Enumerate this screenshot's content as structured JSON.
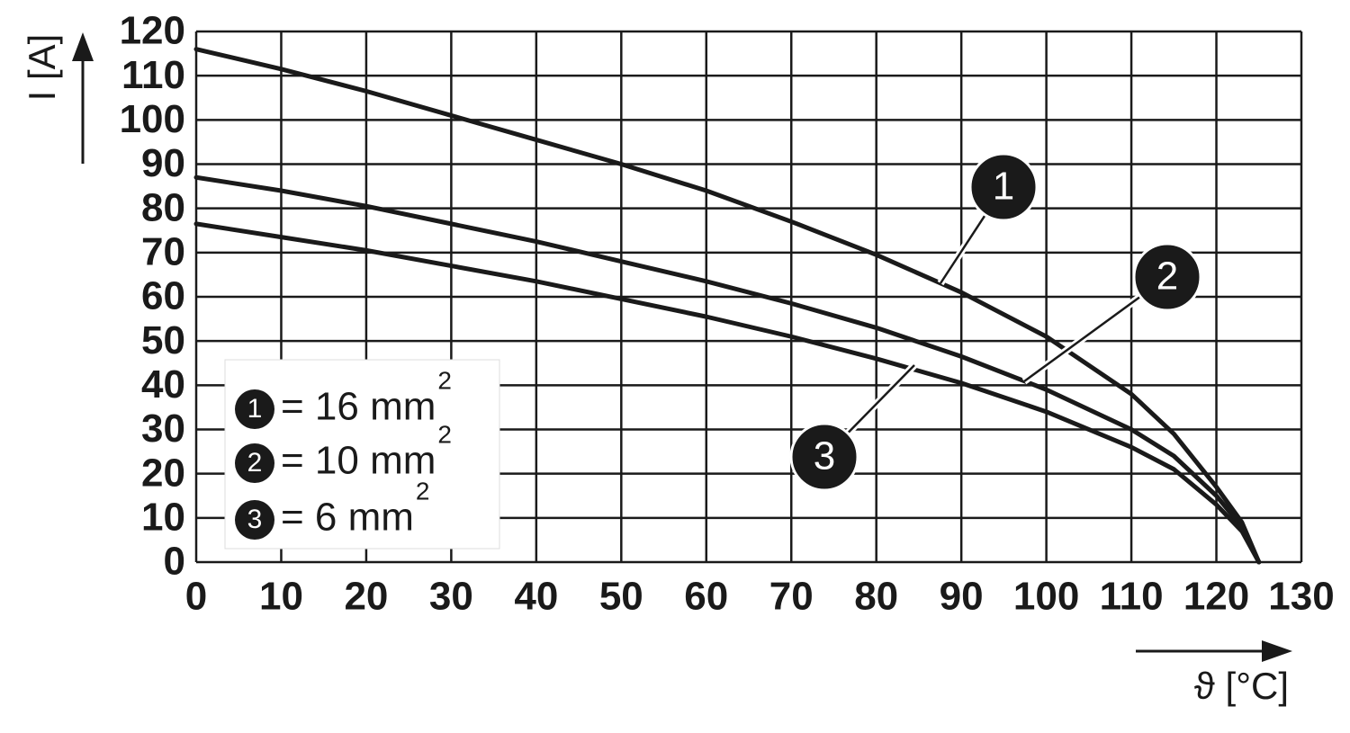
{
  "chart_data": {
    "type": "line",
    "y_label": "I [A]",
    "x_label": "ϑ [°C]",
    "x": [
      0,
      10,
      20,
      30,
      40,
      50,
      60,
      70,
      80,
      90,
      100,
      110,
      115,
      120,
      123,
      125
    ],
    "series": [
      {
        "marker": "1",
        "name": "= 16 mm",
        "superscript": "2",
        "color": "#1a1a1a",
        "values": [
          116,
          111.5,
          106.5,
          101,
          95.5,
          90,
          84,
          77,
          69.5,
          61,
          51,
          38,
          29,
          17,
          9,
          0
        ]
      },
      {
        "marker": "2",
        "name": "= 10 mm",
        "superscript": "2",
        "color": "#1a1a1a",
        "values": [
          87,
          84,
          80.5,
          76.5,
          72.5,
          68,
          63.5,
          58.5,
          53,
          46.5,
          39,
          30,
          24,
          15,
          8,
          0
        ]
      },
      {
        "marker": "3",
        "name": "= 6 mm",
        "superscript": "2",
        "color": "#1a1a1a",
        "values": [
          76.5,
          73.5,
          70.5,
          67,
          63.5,
          59.5,
          55.5,
          51,
          46,
          40.5,
          34,
          26,
          21,
          13,
          7,
          0
        ]
      }
    ],
    "xlim": [
      0,
      130
    ],
    "ylim": [
      0,
      120
    ],
    "xticks": [
      0,
      10,
      20,
      30,
      40,
      50,
      60,
      70,
      80,
      90,
      100,
      110,
      120,
      130
    ],
    "yticks": [
      0,
      10,
      20,
      30,
      40,
      50,
      60,
      70,
      80,
      90,
      100,
      110,
      120
    ],
    "grid": true
  }
}
